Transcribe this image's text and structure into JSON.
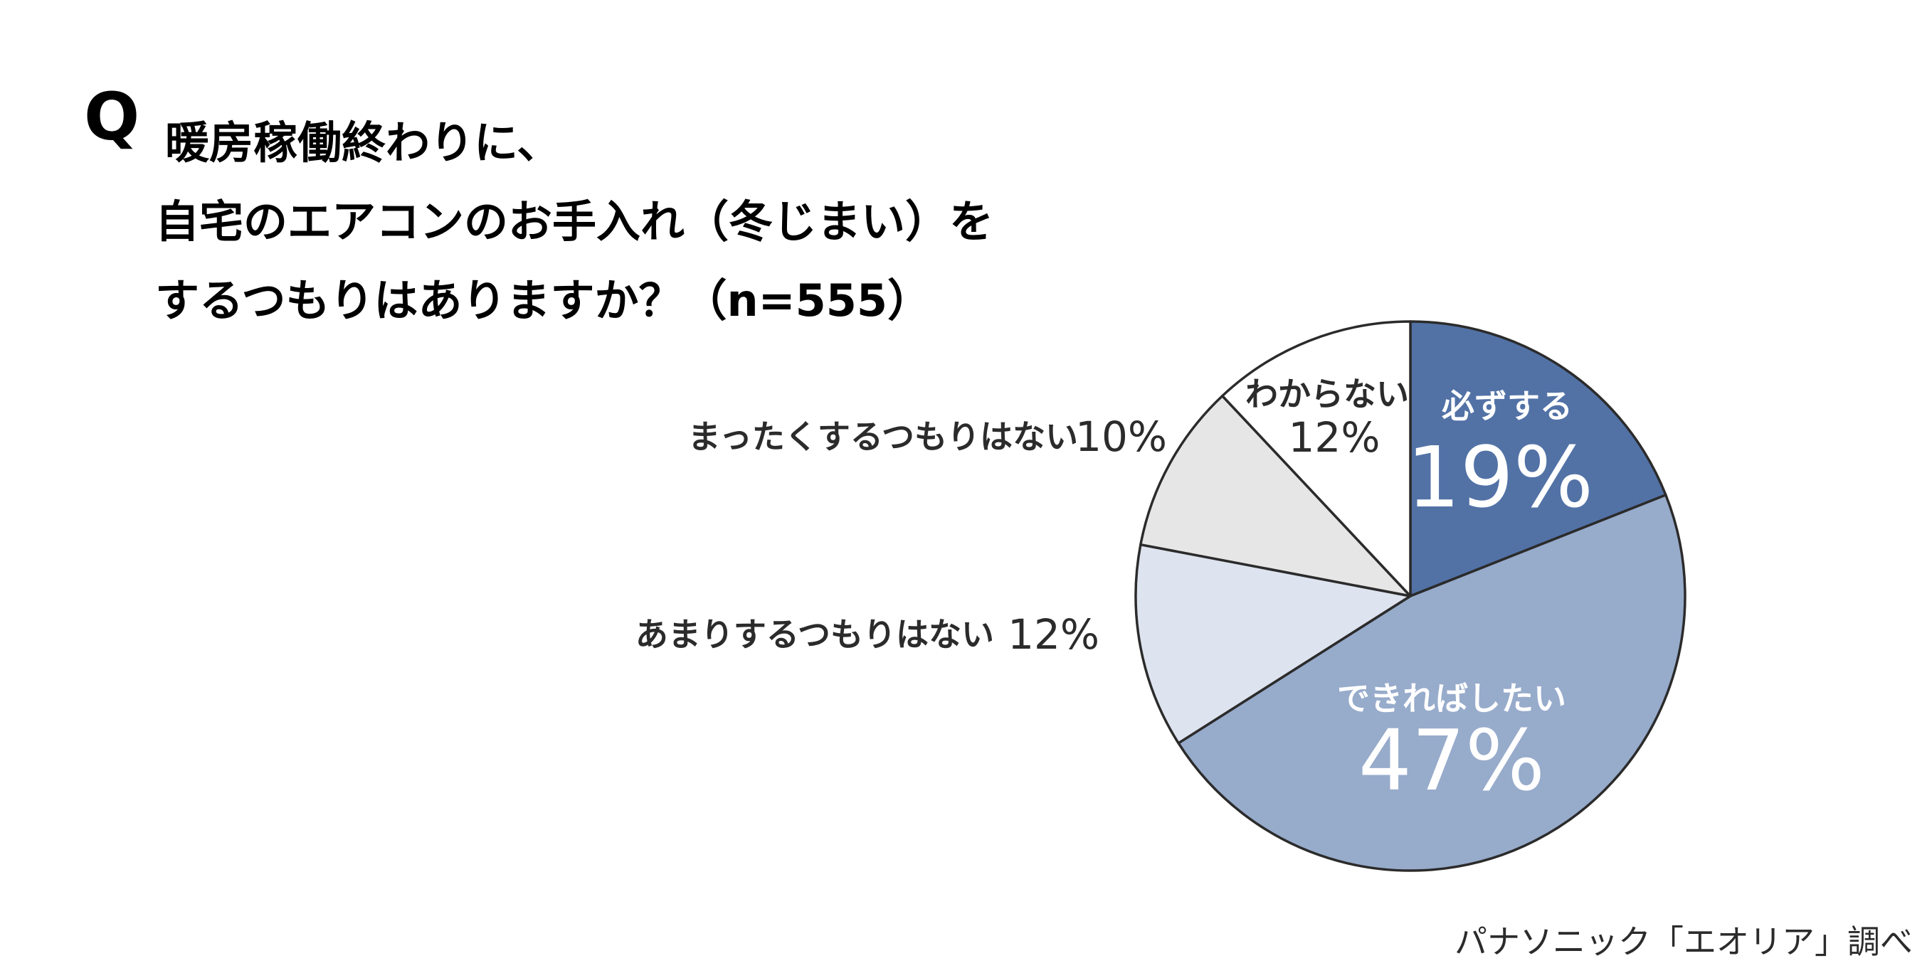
{
  "question": {
    "mark": "Q",
    "lines": [
      "暖房稼働終わりに、",
      "自宅のエアコンのお手入れ（冬じまい）を",
      "するつもりはありますか？（n=555）"
    ]
  },
  "source": "パナソニック「エオリア」調べ",
  "chart_data": {
    "type": "pie",
    "start_angle_deg": 0,
    "direction": "clockwise",
    "slices": [
      {
        "label": "必ずする",
        "value": 19,
        "value_label": "19%",
        "color": "#5272a6"
      },
      {
        "label": "できればしたい",
        "value": 47,
        "value_label": "47%",
        "color": "#97abcb"
      },
      {
        "label": "あまりするつもりはない",
        "value": 12,
        "value_label": "12%",
        "color": "#dde3ef"
      },
      {
        "label": "まったくするつもりはない",
        "value": 10,
        "value_label": "10%",
        "color": "#e6e6e6"
      },
      {
        "label": "わからない",
        "value": 12,
        "value_label": "12%",
        "color": "#ffffff"
      }
    ]
  }
}
